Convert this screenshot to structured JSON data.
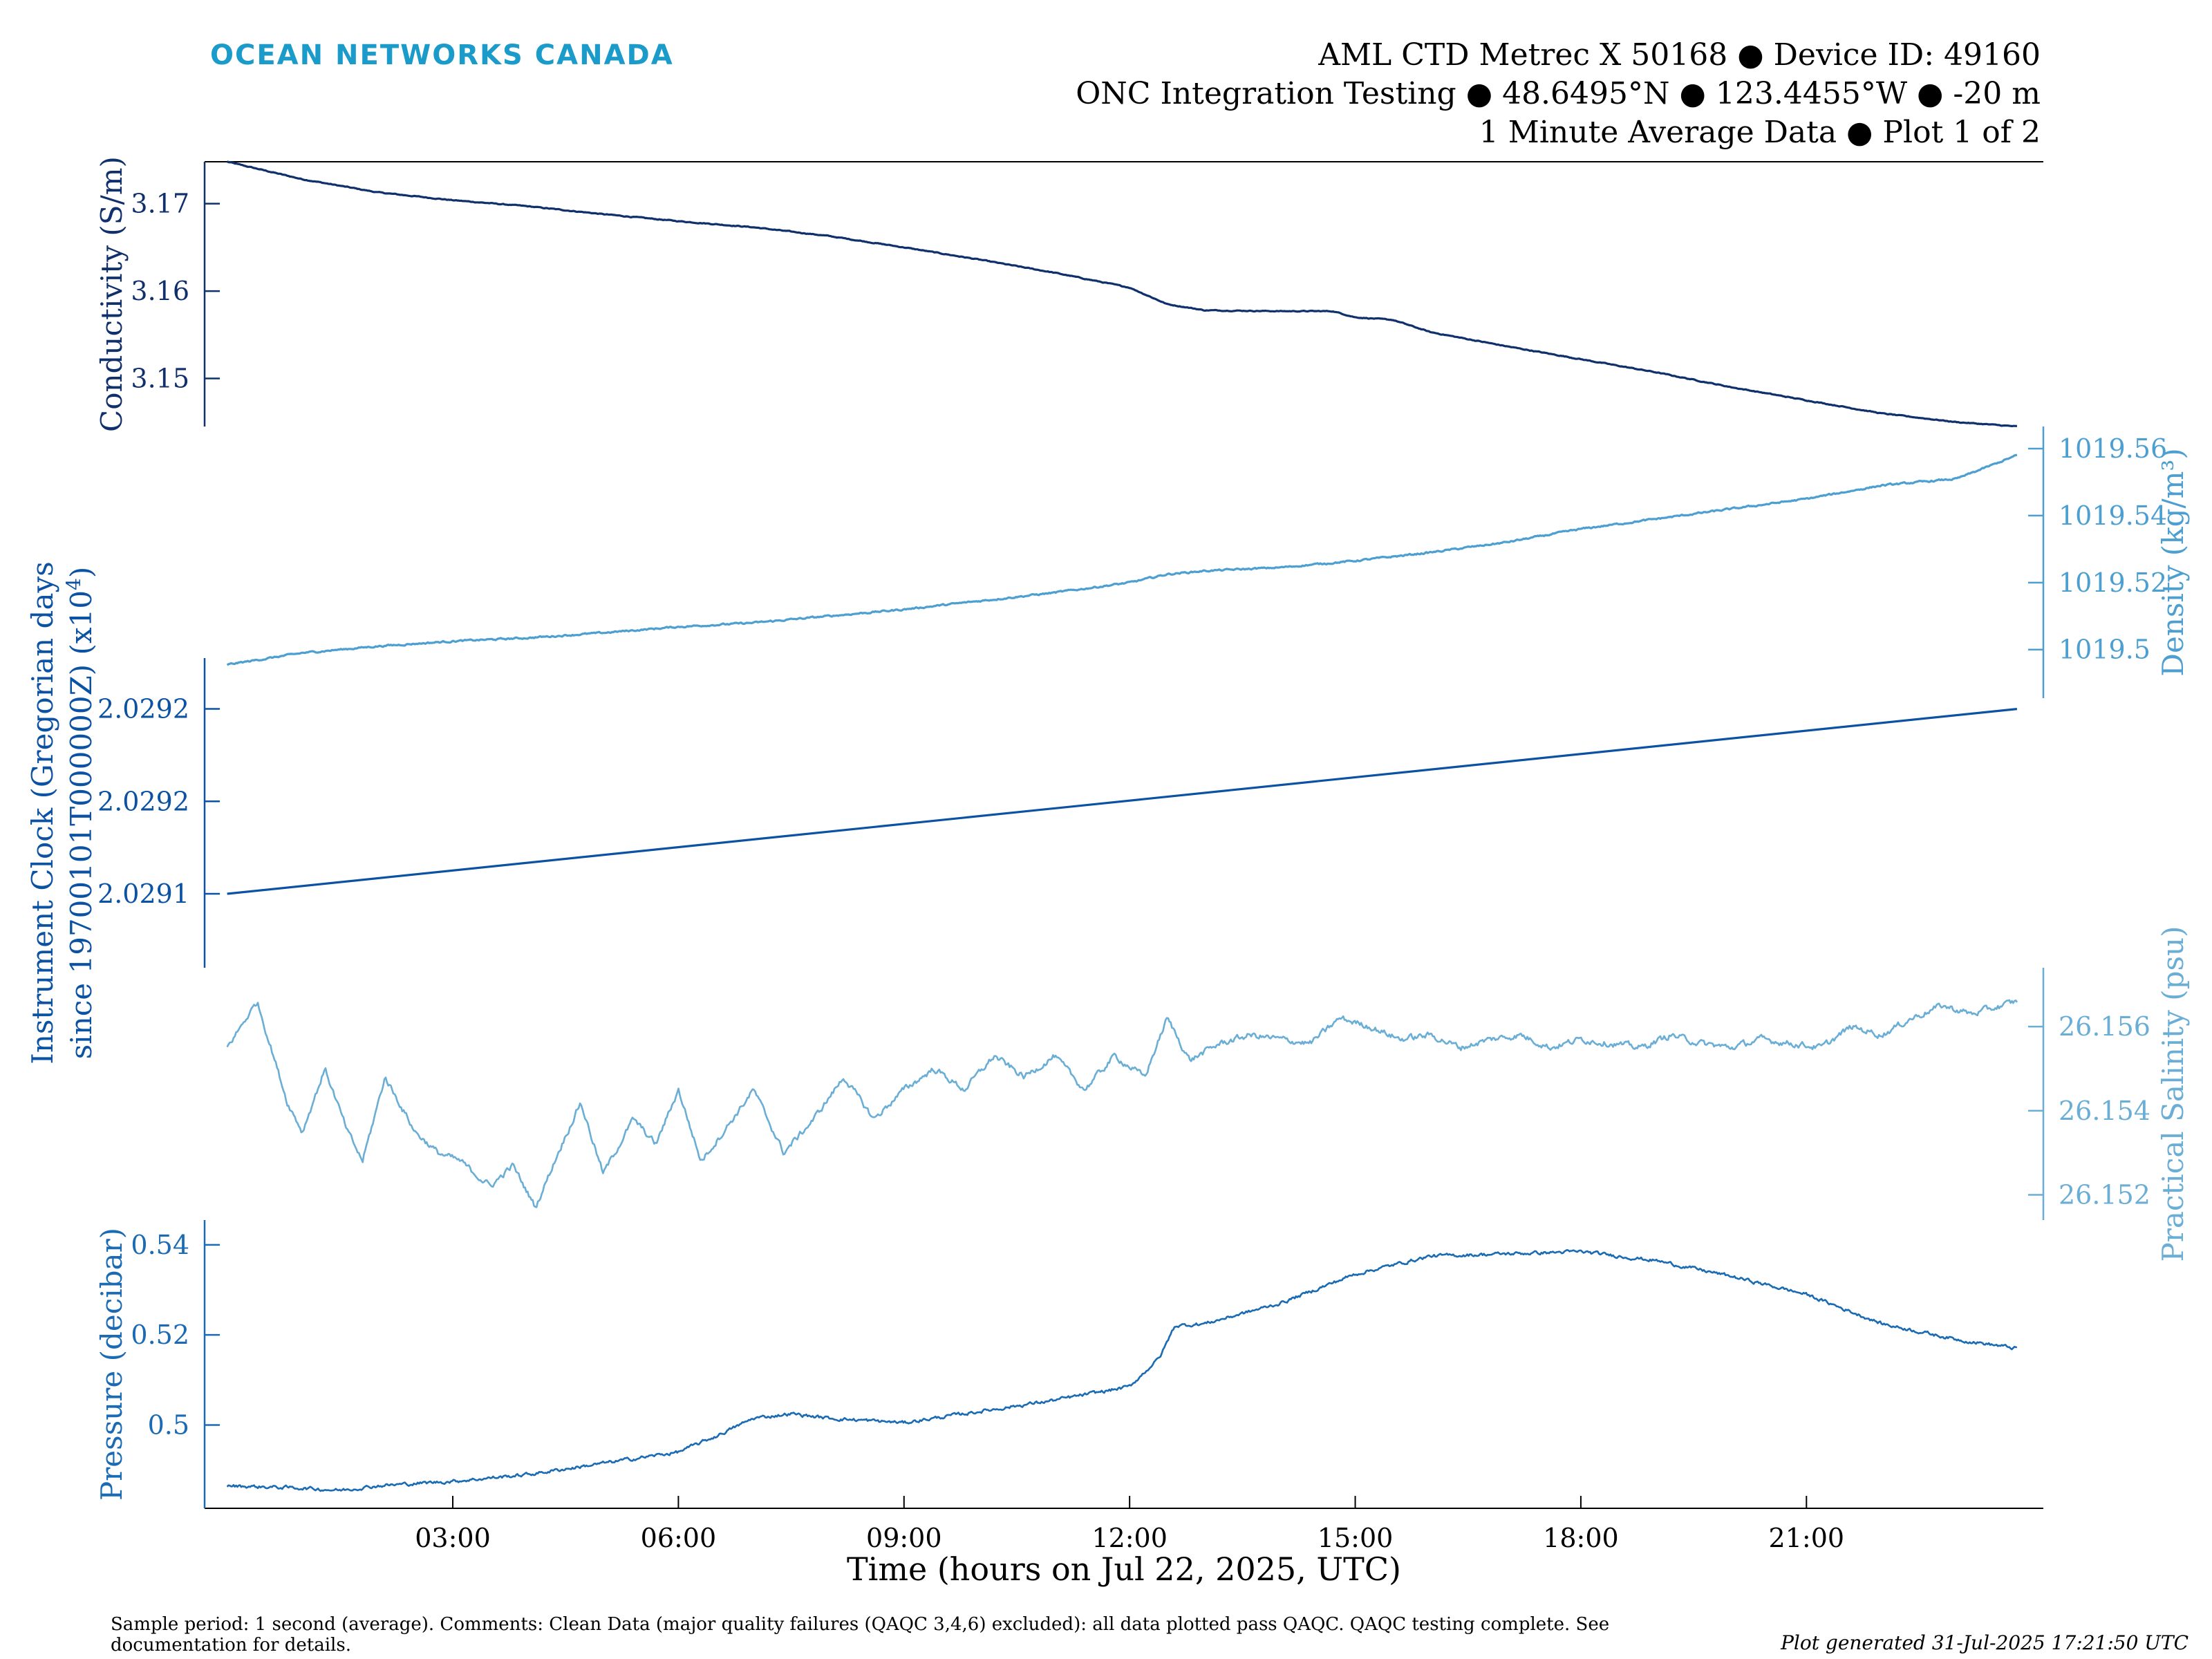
{
  "brand": {
    "name": "OCEAN NETWORKS CANADA",
    "color": "#1a9bc9"
  },
  "header": {
    "line1": "AML CTD Metrec X 50168 ● Device ID: 49160",
    "line2": "ONC Integration Testing ● 48.6495°N ● 123.4455°W ● -20 m",
    "line3": "1 Minute Average Data ● Plot 1 of 2"
  },
  "footer": {
    "comments": "Sample period: 1 second (average). Comments: Clean Data (major quality failures (QAQC 3,4,6) excluded): all data plotted pass QAQC. QAQC testing complete. See documentation for details.",
    "generated": "Plot generated 31-Jul-2025 17:21:50 UTC"
  },
  "chart_data": [
    {
      "type": "line",
      "ylabel": "Conductivity (S/m)",
      "yaxis_side": "left",
      "color": "#10306b",
      "yticks": [
        3.15,
        3.16,
        3.17
      ],
      "ytick_labels": [
        "3.15",
        "3.16",
        "3.17"
      ],
      "ylim": [
        3.1445,
        3.1748
      ],
      "x_hours": [
        0.0,
        1.0,
        2.0,
        3.0,
        4.0,
        5.0,
        6.0,
        7.0,
        8.0,
        9.0,
        10.0,
        11.0,
        12.0,
        12.5,
        13.0,
        14.0,
        14.7,
        15.0,
        15.5,
        16.0,
        17.0,
        18.0,
        19.0,
        20.0,
        21.0,
        22.0,
        23.0,
        23.8
      ],
      "values": [
        3.1748,
        3.1728,
        3.1713,
        3.1704,
        3.1697,
        3.1688,
        3.168,
        3.1673,
        3.1663,
        3.165,
        3.1636,
        3.1621,
        3.1604,
        3.1585,
        3.1578,
        3.1577,
        3.1577,
        3.157,
        3.1567,
        3.1553,
        3.1537,
        3.1522,
        3.1507,
        3.149,
        3.1475,
        3.146,
        3.145,
        3.1445
      ]
    },
    {
      "type": "line",
      "ylabel": "Density (kg/m³)",
      "yaxis_side": "right",
      "color": "#4c9fd0",
      "yticks": [
        1019.5,
        1019.52,
        1019.54,
        1019.56
      ],
      "ytick_labels": [
        "1019.5",
        "1019.52",
        "1019.54",
        "1019.56"
      ],
      "ylim": [
        1019.4855,
        1019.5666
      ],
      "x_hours": [
        0.0,
        1.0,
        2.0,
        3.0,
        4.0,
        5.0,
        6.0,
        7.0,
        8.0,
        9.0,
        10.0,
        11.0,
        12.0,
        12.5,
        13.0,
        14.0,
        15.0,
        16.0,
        17.0,
        18.0,
        19.0,
        20.0,
        21.0,
        22.0,
        23.0,
        23.8
      ],
      "values": [
        1019.4955,
        1019.499,
        1019.501,
        1019.5025,
        1019.5035,
        1019.505,
        1019.5068,
        1019.508,
        1019.51,
        1019.512,
        1019.5145,
        1019.517,
        1019.52,
        1019.5225,
        1019.5235,
        1019.5245,
        1019.5265,
        1019.529,
        1019.532,
        1019.536,
        1019.539,
        1019.542,
        1019.545,
        1019.549,
        1019.551,
        1019.558
      ]
    },
    {
      "type": "line",
      "ylabel": "Instrument Clock (Gregorian days since 19700101T000000Z) (x10⁴)",
      "ylabel_line1": "Instrument Clock (Gregorian days",
      "ylabel_line2": "since 19700101T000000Z) (x10",
      "ylabel_exp": "4",
      "ylabel_close": ")",
      "yaxis_side": "left",
      "color": "#0c52a2",
      "yticks": [
        2.02914,
        2.02916,
        2.02918
      ],
      "ytick_labels": [
        "2.0291",
        "2.0292",
        "2.0292"
      ],
      "ylim": [
        2.029124,
        2.029191
      ],
      "x_hours": [
        0.0,
        23.8
      ],
      "values": [
        2.02914,
        2.02918
      ]
    },
    {
      "type": "line",
      "ylabel": "Practical Salinity (psu)",
      "yaxis_side": "right",
      "color": "#6aaed6",
      "yticks": [
        26.152,
        26.154,
        26.156
      ],
      "ytick_labels": [
        "26.152",
        "26.154",
        "26.156"
      ],
      "ylim": [
        26.1514,
        26.1574
      ],
      "x_hours": [
        0.0,
        0.4,
        0.8,
        1.0,
        1.3,
        1.6,
        1.8,
        2.1,
        2.5,
        2.8,
        3.1,
        3.5,
        3.8,
        4.1,
        4.4,
        4.7,
        5.0,
        5.4,
        5.7,
        6.0,
        6.3,
        6.6,
        7.0,
        7.4,
        7.8,
        8.2,
        8.6,
        9.0,
        9.4,
        9.8,
        10.2,
        10.6,
        11.0,
        11.4,
        11.8,
        12.2,
        12.5,
        12.8,
        13.2,
        13.6,
        14.0,
        14.4,
        14.8,
        15.2,
        15.6,
        16.0,
        16.4,
        16.8,
        17.2,
        17.6,
        18.0,
        18.4,
        18.8,
        19.2,
        19.6,
        20.0,
        20.4,
        20.8,
        21.2,
        21.6,
        22.0,
        22.4,
        22.8,
        23.2,
        23.8
      ],
      "values": [
        26.1555,
        26.1566,
        26.1542,
        26.1535,
        26.155,
        26.1535,
        26.1528,
        26.1548,
        26.1535,
        26.153,
        26.1528,
        26.1522,
        26.1527,
        26.1517,
        26.153,
        26.1542,
        26.1525,
        26.1538,
        26.1532,
        26.1545,
        26.1528,
        26.1535,
        26.1545,
        26.153,
        26.1538,
        26.1548,
        26.1538,
        26.1545,
        26.155,
        26.1545,
        26.1553,
        26.1548,
        26.1553,
        26.1545,
        26.1553,
        26.1548,
        26.1562,
        26.1552,
        26.1556,
        26.1558,
        26.1557,
        26.1556,
        26.1562,
        26.156,
        26.1557,
        26.1558,
        26.1555,
        26.1557,
        26.1558,
        26.1555,
        26.1557,
        26.1556,
        26.1555,
        26.1558,
        26.1556,
        26.1555,
        26.1557,
        26.1556,
        26.1555,
        26.156,
        26.1558,
        26.1562,
        26.1565,
        26.1563,
        26.1566
      ]
    },
    {
      "type": "line",
      "ylabel": "Pressure (decibar)",
      "yaxis_side": "left",
      "color": "#1a6bb3",
      "yticks": [
        0.5,
        0.52,
        0.54
      ],
      "ytick_labels": [
        "0.5",
        "0.52",
        "0.54"
      ],
      "ylim": [
        0.4815,
        0.5455
      ],
      "x_hours": [
        0.0,
        1.0,
        1.5,
        2.0,
        3.0,
        4.0,
        5.0,
        6.0,
        6.5,
        7.0,
        7.5,
        8.0,
        9.0,
        10.0,
        11.0,
        12.0,
        12.4,
        12.6,
        13.0,
        14.0,
        15.0,
        16.0,
        17.0,
        18.0,
        19.0,
        20.0,
        21.0,
        22.0,
        23.0,
        23.8
      ],
      "values": [
        0.4865,
        0.486,
        0.4855,
        0.4865,
        0.4875,
        0.489,
        0.4915,
        0.494,
        0.4975,
        0.5015,
        0.5025,
        0.5015,
        0.5005,
        0.503,
        0.5055,
        0.5085,
        0.515,
        0.522,
        0.5225,
        0.527,
        0.5335,
        0.5375,
        0.538,
        0.5385,
        0.5365,
        0.533,
        0.529,
        0.5225,
        0.519,
        0.517
      ]
    }
  ],
  "x_axis": {
    "label": "Time (hours on Jul 22, 2025, UTC)",
    "xlim_hours": [
      -0.3,
      24.15
    ],
    "ticks_hours": [
      3,
      6,
      9,
      12,
      15,
      18,
      21
    ],
    "tick_labels": [
      "03:00",
      "06:00",
      "09:00",
      "12:00",
      "15:00",
      "18:00",
      "21:00"
    ]
  }
}
